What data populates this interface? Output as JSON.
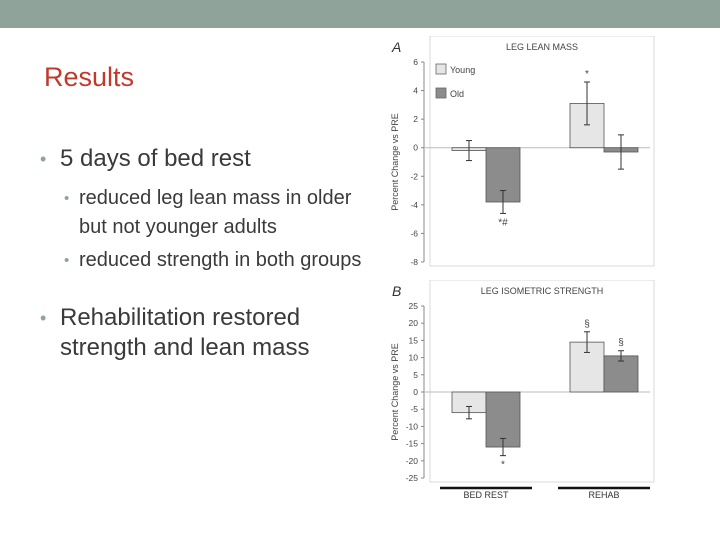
{
  "slide": {
    "title": "Results",
    "bullets": [
      {
        "level": 1,
        "text": "5 days of bed rest"
      },
      {
        "level": 2,
        "text": "reduced leg lean mass in older but not younger adults"
      },
      {
        "level": 2,
        "text": "reduced strength in both groups"
      },
      {
        "level": 1,
        "text": "Rehabilitation restored strength and lean mass"
      }
    ],
    "accent_color": "#8fa39a",
    "title_color": "#c0392b"
  },
  "chart_data": [
    {
      "type": "bar",
      "panel_label": "A",
      "title": "LEG LEAN MASS",
      "ylabel": "Percent Change vs PRE",
      "ylim": [
        -8,
        6
      ],
      "yticks": [
        6,
        4,
        2,
        0,
        -2,
        -4,
        -6,
        -8
      ],
      "ytick_labels": [
        "6",
        "4",
        "2",
        "0",
        "-2",
        "-4",
        "-6",
        "-8"
      ],
      "categories": [
        "BED REST",
        "REHAB"
      ],
      "category_labels_visible": false,
      "series": [
        {
          "name": "Young",
          "color": "#e6e6e6",
          "values": [
            -0.2,
            3.1
          ],
          "errors": [
            0.7,
            1.5
          ],
          "annotations": [
            "",
            "*"
          ]
        },
        {
          "name": "Old",
          "color": "#8c8c8c",
          "values": [
            -3.8,
            -0.3
          ],
          "errors": [
            0.8,
            1.2
          ],
          "annotations": [
            "*#",
            ""
          ]
        }
      ],
      "legend": "top-left"
    },
    {
      "type": "bar",
      "panel_label": "B",
      "title": "LEG ISOMETRIC STRENGTH",
      "ylabel": "Percent Change vs PRE",
      "ylim": [
        -25,
        25
      ],
      "yticks": [
        25,
        20,
        15,
        10,
        5,
        0,
        -5,
        -10,
        -15,
        -20,
        -25
      ],
      "ytick_labels": [
        "25",
        "20",
        "15",
        "10",
        "5",
        "0",
        "-5",
        "-10",
        "-15",
        "-20",
        "-25"
      ],
      "categories": [
        "BED REST",
        "REHAB"
      ],
      "category_labels_visible": true,
      "series": [
        {
          "name": "Young",
          "color": "#e6e6e6",
          "values": [
            -6,
            14.5
          ],
          "errors": [
            1.8,
            3.0
          ],
          "annotations": [
            "",
            "§"
          ]
        },
        {
          "name": "Old",
          "color": "#8c8c8c",
          "values": [
            -16,
            10.5
          ],
          "errors": [
            2.5,
            1.5
          ],
          "annotations": [
            "*",
            "§"
          ]
        }
      ]
    }
  ]
}
